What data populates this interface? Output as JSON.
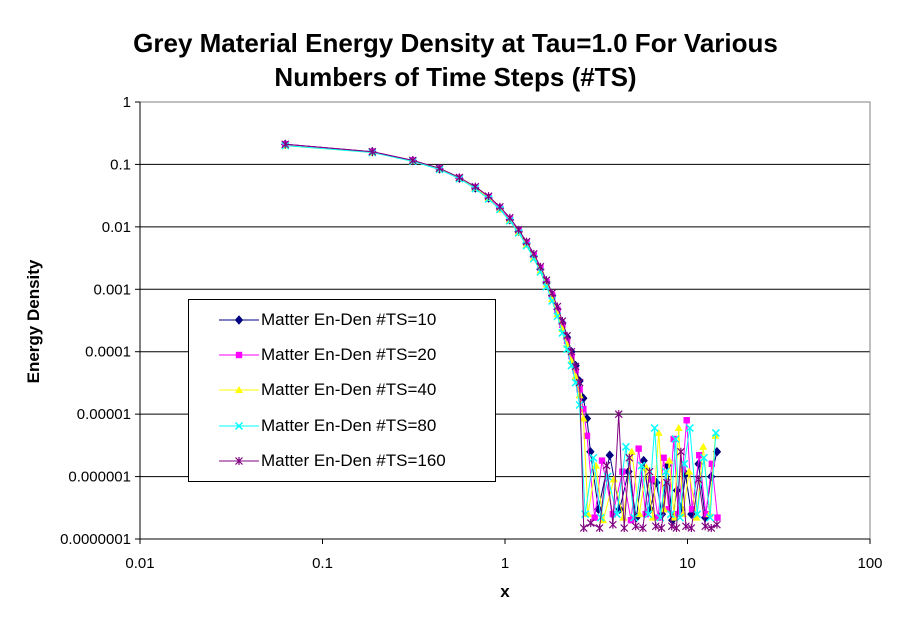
{
  "chart_data": {
    "type": "line",
    "title_line1": "Grey Material Energy Density at Tau=1.0 For Various",
    "title_line2": "Numbers of Time Steps (#TS)",
    "xlabel": "x",
    "ylabel": "Energy Density",
    "x_scale": "log",
    "y_scale": "log",
    "xlim": [
      0.01,
      100
    ],
    "ylim": [
      1e-07,
      1
    ],
    "x_tick_labels": [
      "0.01",
      "0.1",
      "1",
      "10",
      "100"
    ],
    "y_tick_labels": [
      "1",
      "0.1",
      "0.01",
      "0.001",
      "0.0001",
      "0.00001",
      "0.000001",
      "0.0000001"
    ],
    "grid": "horizontal major gridlines",
    "legend_position": "center-left",
    "series": [
      {
        "name": "Matter En-Den #TS=10",
        "color": "#000080",
        "marker": "diamond",
        "x": [
          0.0625,
          0.1875,
          0.3125,
          0.4375,
          0.5625,
          0.6875,
          0.8125,
          0.9375,
          1.0625,
          1.1875,
          1.3125,
          1.4375,
          1.5625,
          1.6875,
          1.8125,
          1.9375,
          2.0625,
          2.1875,
          2.3125,
          2.4375,
          2.5625,
          2.6875,
          2.8125,
          2.9375,
          3.25,
          3.75,
          4.25,
          4.75,
          5.25,
          5.75,
          6.25,
          6.75,
          7.25,
          7.75,
          8.25,
          8.75,
          9.25,
          9.75,
          10.5,
          11.5,
          12.5,
          13.5,
          14.5
        ],
        "y": [
          0.21,
          0.16,
          0.115,
          0.085,
          0.06,
          0.042,
          0.029,
          0.02,
          0.013,
          0.0085,
          0.0055,
          0.0034,
          0.0021,
          0.0013,
          0.0008,
          0.00048,
          0.00029,
          0.00017,
          0.0001,
          6e-05,
          3.4e-05,
          1.8e-05,
          8.5e-06,
          2.5e-06,
          3e-07,
          2.2e-06,
          3e-07,
          1.2e-06,
          2.2e-07,
          1.8e-06,
          3e-07,
          8e-07,
          2.5e-07,
          1.5e-06,
          2e-07,
          6e-07,
          3e-07,
          1.1e-06,
          2.5e-07,
          1.6e-06,
          2.2e-07,
          1e-06,
          2.5e-06
        ]
      },
      {
        "name": "Matter En-Den #TS=20",
        "color": "#FF00FF",
        "marker": "square",
        "x": [
          0.0625,
          0.1875,
          0.3125,
          0.4375,
          0.5625,
          0.6875,
          0.8125,
          0.9375,
          1.0625,
          1.1875,
          1.3125,
          1.4375,
          1.5625,
          1.6875,
          1.8125,
          1.9375,
          2.0625,
          2.1875,
          2.3125,
          2.4375,
          2.5625,
          2.6875,
          2.8125,
          3.1,
          3.4,
          3.9,
          4.4,
          4.9,
          5.4,
          5.9,
          6.4,
          6.9,
          7.4,
          7.9,
          8.4,
          8.9,
          9.4,
          9.9,
          10.6,
          11.6,
          12.6,
          13.6,
          14.6
        ],
        "y": [
          0.21,
          0.16,
          0.116,
          0.086,
          0.061,
          0.043,
          0.03,
          0.02,
          0.0135,
          0.0087,
          0.0056,
          0.0035,
          0.0022,
          0.0013,
          0.0008,
          0.00047,
          0.00027,
          0.00015,
          8.5e-05,
          5e-05,
          2.5e-05,
          1.2e-05,
          4.5e-06,
          2.2e-07,
          1.8e-06,
          2.5e-07,
          1.2e-06,
          2e-07,
          2.8e-06,
          2.5e-07,
          9e-07,
          2.2e-07,
          2e-06,
          3e-07,
          4e-06,
          2.5e-07,
          1.3e-06,
          8e-06,
          3e-07,
          2.2e-06,
          2.5e-07,
          1.6e-06,
          2.2e-07
        ]
      },
      {
        "name": "Matter En-Den #TS=40",
        "color": "#FFFF00",
        "marker": "triangle",
        "x": [
          0.0625,
          0.1875,
          0.3125,
          0.4375,
          0.5625,
          0.6875,
          0.8125,
          0.9375,
          1.0625,
          1.1875,
          1.3125,
          1.4375,
          1.5625,
          1.6875,
          1.8125,
          1.9375,
          2.0625,
          2.1875,
          2.3125,
          2.4375,
          2.5625,
          2.6875,
          2.85,
          3.15,
          3.45,
          3.95,
          4.45,
          4.95,
          5.45,
          5.95,
          6.45,
          6.95,
          7.45,
          7.95,
          8.45,
          8.95,
          9.45,
          10.2,
          11.2,
          12.2,
          13.2,
          14.2
        ],
        "y": [
          0.2,
          0.155,
          0.113,
          0.084,
          0.06,
          0.042,
          0.029,
          0.019,
          0.0128,
          0.0082,
          0.0052,
          0.0032,
          0.002,
          0.0012,
          0.0007,
          0.0004,
          0.00023,
          0.00013,
          7.2e-05,
          4e-05,
          2e-05,
          8.5e-06,
          2.5e-07,
          1.5e-06,
          2e-07,
          9e-07,
          2.2e-07,
          2.5e-06,
          2.5e-07,
          1.4e-06,
          2.2e-07,
          5e-06,
          3e-07,
          1.8e-06,
          2.2e-07,
          6e-06,
          2.5e-07,
          1.2e-06,
          2.2e-07,
          3e-06,
          2.5e-07,
          4.5e-06
        ]
      },
      {
        "name": "Matter En-Den #TS=80",
        "color": "#00FFFF",
        "marker": "x",
        "x": [
          0.0625,
          0.1875,
          0.3125,
          0.4375,
          0.5625,
          0.6875,
          0.8125,
          0.9375,
          1.0625,
          1.1875,
          1.3125,
          1.4375,
          1.5625,
          1.6875,
          1.8125,
          1.9375,
          2.0625,
          2.1875,
          2.3125,
          2.4375,
          2.5625,
          2.75,
          3.05,
          3.35,
          3.65,
          4.1,
          4.6,
          5.1,
          5.6,
          6.1,
          6.6,
          7.1,
          7.6,
          8.1,
          8.6,
          9.1,
          9.6,
          10.3,
          11.3,
          12.3,
          13.3,
          14.3
        ],
        "y": [
          0.2,
          0.155,
          0.112,
          0.083,
          0.059,
          0.041,
          0.028,
          0.019,
          0.0125,
          0.008,
          0.005,
          0.0031,
          0.0019,
          0.0011,
          0.00065,
          0.00037,
          0.0002,
          0.00011,
          6e-05,
          3.2e-05,
          1.4e-05,
          2.5e-07,
          2e-06,
          2.2e-07,
          1e-06,
          2.5e-07,
          3e-06,
          2.2e-07,
          1.5e-06,
          2.5e-07,
          6e-06,
          2.2e-07,
          1.2e-06,
          2.5e-07,
          4e-06,
          2.2e-07,
          1.6e-06,
          6e-06,
          2.5e-07,
          2e-06,
          2.2e-07,
          5e-06
        ]
      },
      {
        "name": "Matter En-Den #TS=160",
        "color": "#800080",
        "marker": "star",
        "x": [
          0.0625,
          0.1875,
          0.3125,
          0.4375,
          0.5625,
          0.6875,
          0.8125,
          0.9375,
          1.0625,
          1.1875,
          1.3125,
          1.4375,
          1.5625,
          1.6875,
          1.8125,
          1.9375,
          2.0625,
          2.1875,
          2.3125,
          2.4375,
          2.5625,
          2.7,
          2.95,
          3.3,
          3.6,
          3.9,
          4.2,
          4.5,
          4.8,
          5.2,
          5.7,
          6.2,
          6.7,
          7.2,
          7.7,
          8.2,
          8.7,
          9.2,
          9.8,
          10.5,
          11.5,
          12.5,
          13.5,
          14.5
        ],
        "y": [
          0.21,
          0.16,
          0.116,
          0.087,
          0.062,
          0.044,
          0.031,
          0.021,
          0.014,
          0.009,
          0.0058,
          0.0037,
          0.0023,
          0.0014,
          0.00087,
          0.00053,
          0.00031,
          0.00018,
          0.0001,
          5.8e-05,
          3.2e-05,
          1.5e-07,
          1.8e-07,
          1.5e-07,
          1.5e-06,
          1.7e-07,
          1e-05,
          1.5e-07,
          2e-06,
          1.6e-07,
          1.5e-07,
          1.2e-06,
          1.6e-07,
          1.5e-07,
          8e-07,
          1.6e-07,
          1.5e-07,
          2.5e-06,
          1.6e-07,
          1.5e-07,
          9e-07,
          1.6e-07,
          1.5e-07,
          1.7e-07
        ]
      }
    ]
  }
}
